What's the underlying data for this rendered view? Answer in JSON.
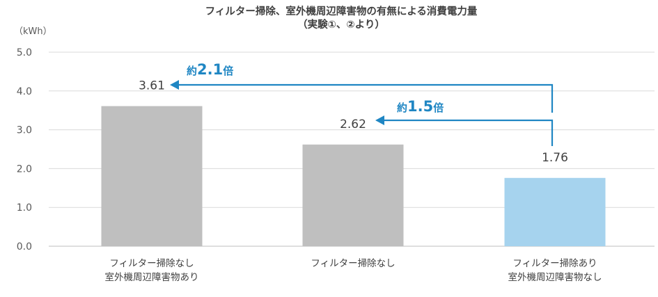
{
  "colors": {
    "grid": "#d9d9d9",
    "axis": "#bfbfbf",
    "bar_default": "#bfbfbf",
    "bar_highlight": "#a6d3ee",
    "accent": "#1f86c3"
  },
  "chart_data": {
    "type": "bar",
    "title_line1": "フィルター掃除、室外機周辺障害物の有無による消費電力量",
    "title_line2": "（実験①、②より）",
    "unit_label": "（kWh）",
    "ylim": [
      0,
      5
    ],
    "yticks": [
      "0.0",
      "1.0",
      "2.0",
      "3.0",
      "4.0",
      "5.0"
    ],
    "grid": true,
    "categories": [
      [
        "フィルター掃除なし",
        "室外機周辺障害物あり"
      ],
      [
        "フィルター掃除なし"
      ],
      [
        "フィルター掃除あり",
        "室外機周辺障害物なし"
      ]
    ],
    "values": [
      3.61,
      2.62,
      1.76
    ],
    "value_labels": [
      "3.61",
      "2.62",
      "1.76"
    ],
    "highlight_index": 2,
    "annotations": [
      {
        "from_index": 2,
        "to_index": 0,
        "prefix": "約",
        "number": "2.1",
        "suffix": "倍"
      },
      {
        "from_index": 2,
        "to_index": 1,
        "prefix": "約",
        "number": "1.5",
        "suffix": "倍"
      }
    ]
  }
}
